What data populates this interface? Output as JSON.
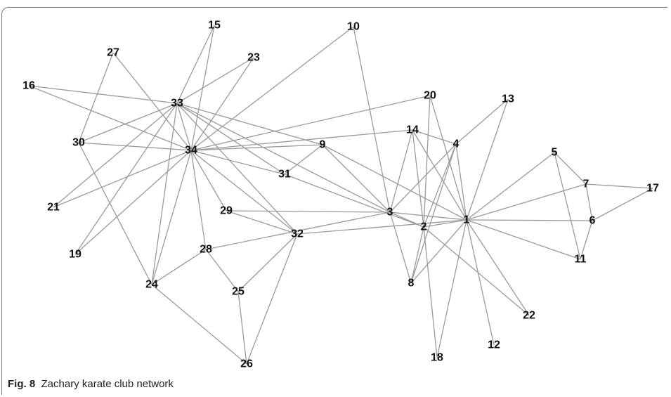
{
  "caption": {
    "label": "Fig. 8",
    "text": "Zachary karate club network"
  },
  "graph": {
    "nodes": [
      "1",
      "2",
      "3",
      "4",
      "5",
      "6",
      "7",
      "8",
      "9",
      "10",
      "11",
      "12",
      "13",
      "14",
      "15",
      "16",
      "17",
      "18",
      "19",
      "20",
      "21",
      "22",
      "23",
      "24",
      "25",
      "26",
      "27",
      "28",
      "29",
      "30",
      "31",
      "32",
      "33",
      "34"
    ],
    "edges": [
      [
        "1",
        "2"
      ],
      [
        "1",
        "3"
      ],
      [
        "1",
        "4"
      ],
      [
        "1",
        "5"
      ],
      [
        "1",
        "6"
      ],
      [
        "1",
        "7"
      ],
      [
        "1",
        "8"
      ],
      [
        "1",
        "9"
      ],
      [
        "1",
        "11"
      ],
      [
        "1",
        "12"
      ],
      [
        "1",
        "13"
      ],
      [
        "1",
        "14"
      ],
      [
        "1",
        "18"
      ],
      [
        "1",
        "20"
      ],
      [
        "1",
        "22"
      ],
      [
        "1",
        "32"
      ],
      [
        "2",
        "3"
      ],
      [
        "2",
        "4"
      ],
      [
        "2",
        "8"
      ],
      [
        "2",
        "14"
      ],
      [
        "2",
        "18"
      ],
      [
        "2",
        "20"
      ],
      [
        "2",
        "22"
      ],
      [
        "2",
        "31"
      ],
      [
        "3",
        "4"
      ],
      [
        "3",
        "8"
      ],
      [
        "3",
        "9"
      ],
      [
        "3",
        "10"
      ],
      [
        "3",
        "14"
      ],
      [
        "3",
        "28"
      ],
      [
        "3",
        "29"
      ],
      [
        "3",
        "33"
      ],
      [
        "4",
        "8"
      ],
      [
        "4",
        "13"
      ],
      [
        "4",
        "14"
      ],
      [
        "5",
        "7"
      ],
      [
        "5",
        "11"
      ],
      [
        "6",
        "7"
      ],
      [
        "6",
        "11"
      ],
      [
        "6",
        "17"
      ],
      [
        "7",
        "17"
      ],
      [
        "9",
        "31"
      ],
      [
        "9",
        "33"
      ],
      [
        "9",
        "34"
      ],
      [
        "10",
        "34"
      ],
      [
        "14",
        "34"
      ],
      [
        "15",
        "33"
      ],
      [
        "15",
        "34"
      ],
      [
        "16",
        "33"
      ],
      [
        "16",
        "34"
      ],
      [
        "19",
        "33"
      ],
      [
        "19",
        "34"
      ],
      [
        "20",
        "34"
      ],
      [
        "21",
        "33"
      ],
      [
        "21",
        "34"
      ],
      [
        "23",
        "33"
      ],
      [
        "23",
        "34"
      ],
      [
        "24",
        "26"
      ],
      [
        "24",
        "28"
      ],
      [
        "24",
        "30"
      ],
      [
        "24",
        "33"
      ],
      [
        "24",
        "34"
      ],
      [
        "25",
        "26"
      ],
      [
        "25",
        "28"
      ],
      [
        "25",
        "32"
      ],
      [
        "26",
        "32"
      ],
      [
        "27",
        "30"
      ],
      [
        "27",
        "34"
      ],
      [
        "28",
        "34"
      ],
      [
        "29",
        "32"
      ],
      [
        "29",
        "34"
      ],
      [
        "30",
        "33"
      ],
      [
        "30",
        "34"
      ],
      [
        "31",
        "33"
      ],
      [
        "31",
        "34"
      ],
      [
        "32",
        "33"
      ],
      [
        "32",
        "34"
      ],
      [
        "33",
        "34"
      ]
    ]
  }
}
